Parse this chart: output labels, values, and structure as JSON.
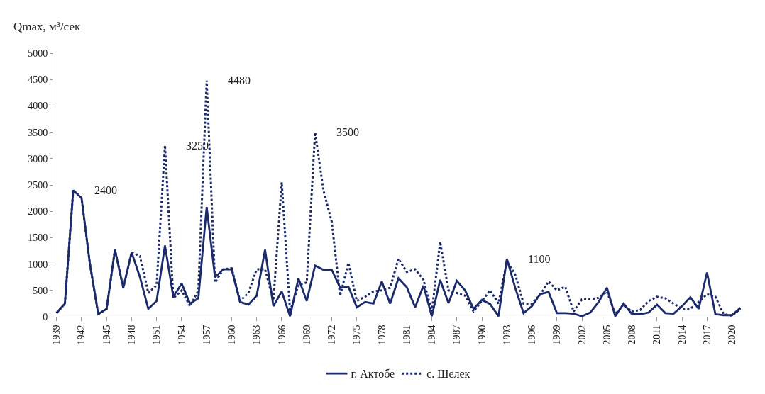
{
  "chart_data": {
    "type": "line",
    "ylabel": "Qmax, м³/сек",
    "x": [
      1939,
      1940,
      1941,
      1942,
      1943,
      1944,
      1945,
      1946,
      1947,
      1948,
      1949,
      1950,
      1951,
      1952,
      1953,
      1954,
      1955,
      1956,
      1957,
      1958,
      1959,
      1960,
      1961,
      1962,
      1963,
      1964,
      1965,
      1966,
      1967,
      1968,
      1969,
      1970,
      1971,
      1972,
      1973,
      1974,
      1975,
      1976,
      1977,
      1978,
      1979,
      1980,
      1981,
      1982,
      1983,
      1984,
      1985,
      1986,
      1987,
      1988,
      1989,
      1990,
      1991,
      1992,
      1993,
      1994,
      1995,
      1996,
      1997,
      1998,
      1999,
      2000,
      2001,
      2002,
      2003,
      2004,
      2005,
      2006,
      2007,
      2008,
      2009,
      2010,
      2011,
      2012,
      2013,
      2014,
      2015,
      2016,
      2017,
      2018,
      2019,
      2020,
      2021
    ],
    "series": [
      {
        "name": "г. Актобе",
        "color": "#1b2a6b",
        "line_style": "solid",
        "values": [
          70,
          250,
          2400,
          2250,
          1000,
          50,
          150,
          1270,
          550,
          1220,
          750,
          150,
          300,
          1350,
          380,
          630,
          250,
          350,
          2080,
          750,
          900,
          900,
          280,
          230,
          400,
          1270,
          200,
          480,
          10,
          730,
          300,
          970,
          890,
          890,
          550,
          570,
          180,
          280,
          250,
          670,
          250,
          730,
          560,
          180,
          590,
          10,
          700,
          260,
          680,
          500,
          150,
          320,
          240,
          10,
          1100,
          550,
          70,
          200,
          430,
          470,
          70,
          70,
          60,
          10,
          80,
          280,
          550,
          10,
          250,
          50,
          50,
          80,
          230,
          70,
          60,
          200,
          370,
          150,
          840,
          50,
          30,
          30,
          170
        ]
      },
      {
        "name": "с. Шелек",
        "color": "#1b2a6b",
        "line_style": "dotted",
        "values": [
          70,
          250,
          2400,
          2250,
          1000,
          50,
          150,
          1270,
          550,
          1220,
          1150,
          450,
          600,
          3250,
          350,
          500,
          200,
          500,
          4480,
          650,
          900,
          920,
          300,
          450,
          900,
          900,
          300,
          2550,
          100,
          600,
          650,
          3500,
          2400,
          1800,
          400,
          1020,
          300,
          380,
          480,
          500,
          550,
          1100,
          850,
          900,
          700,
          100,
          1420,
          500,
          450,
          400,
          100,
          300,
          500,
          250,
          1050,
          800,
          250,
          250,
          420,
          670,
          500,
          570,
          100,
          330,
          330,
          360,
          480,
          50,
          230,
          100,
          130,
          300,
          380,
          350,
          250,
          150,
          150,
          280,
          430,
          380,
          50,
          20,
          150
        ]
      }
    ],
    "annotations": [
      {
        "text": "2400",
        "x": 1941,
        "y": 2400
      },
      {
        "text": "3250",
        "x": 1952,
        "y": 3250
      },
      {
        "text": "4480",
        "x": 1957,
        "y": 4480
      },
      {
        "text": "3500",
        "x": 1970,
        "y": 3500
      },
      {
        "text": "1100",
        "x": 1993,
        "y": 1100
      }
    ],
    "xlim": [
      1938.6,
      2021.4
    ],
    "xticks": [
      1939,
      1942,
      1945,
      1948,
      1951,
      1954,
      1957,
      1960,
      1963,
      1966,
      1969,
      1972,
      1975,
      1978,
      1981,
      1984,
      1987,
      1990,
      1993,
      1996,
      1999,
      2002,
      2005,
      2008,
      2011,
      2014,
      2017,
      2020
    ],
    "ylim": [
      0,
      5000
    ],
    "yticks": [
      0,
      500,
      1000,
      1500,
      2000,
      2500,
      3000,
      3500,
      4000,
      4500,
      5000
    ],
    "grid": false,
    "legend": "bottom",
    "marker": "none"
  }
}
